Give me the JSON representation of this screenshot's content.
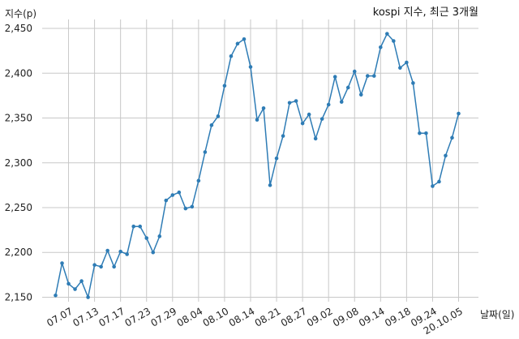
{
  "chart_data": {
    "type": "line",
    "title": "kospi 지수, 최근 3개월",
    "ylabel": "지수(p)",
    "xlabel": "날짜(일)",
    "ylim": [
      2145,
      2460
    ],
    "yticks": [
      2150,
      2200,
      2250,
      2300,
      2350,
      2400,
      2450
    ],
    "ytick_labels": [
      "2,150",
      "2,200",
      "2,250",
      "2,300",
      "2,350",
      "2,400",
      "2,450"
    ],
    "xtick_labels": [
      "07.07",
      "07.13",
      "07.17",
      "07.23",
      "07.29",
      "08.04",
      "08.10",
      "08.14",
      "08.21",
      "08.27",
      "09.02",
      "09.08",
      "09.14",
      "09.18",
      "09.24",
      "20.10.05"
    ],
    "xtick_index": [
      2,
      6,
      10,
      14,
      18,
      22,
      26,
      30,
      34,
      38,
      42,
      46,
      50,
      54,
      58,
      62
    ],
    "grid": true,
    "series_color": "#2e7cb5",
    "values": [
      2152,
      2188,
      2165,
      2159,
      2168,
      2150,
      2186,
      2184,
      2202,
      2184,
      2201,
      2198,
      2229,
      2229,
      2216,
      2200,
      2218,
      2258,
      2264,
      2267,
      2249,
      2251,
      2280,
      2312,
      2342,
      2352,
      2386,
      2419,
      2433,
      2438,
      2407,
      2348,
      2361,
      2275,
      2305,
      2330,
      2367,
      2369,
      2344,
      2354,
      2327,
      2349,
      2365,
      2396,
      2368,
      2384,
      2402,
      2376,
      2397,
      2397,
      2429,
      2444,
      2436,
      2406,
      2412,
      2389,
      2333,
      2333,
      2274,
      2279,
      2308,
      2328,
      2355
    ]
  }
}
